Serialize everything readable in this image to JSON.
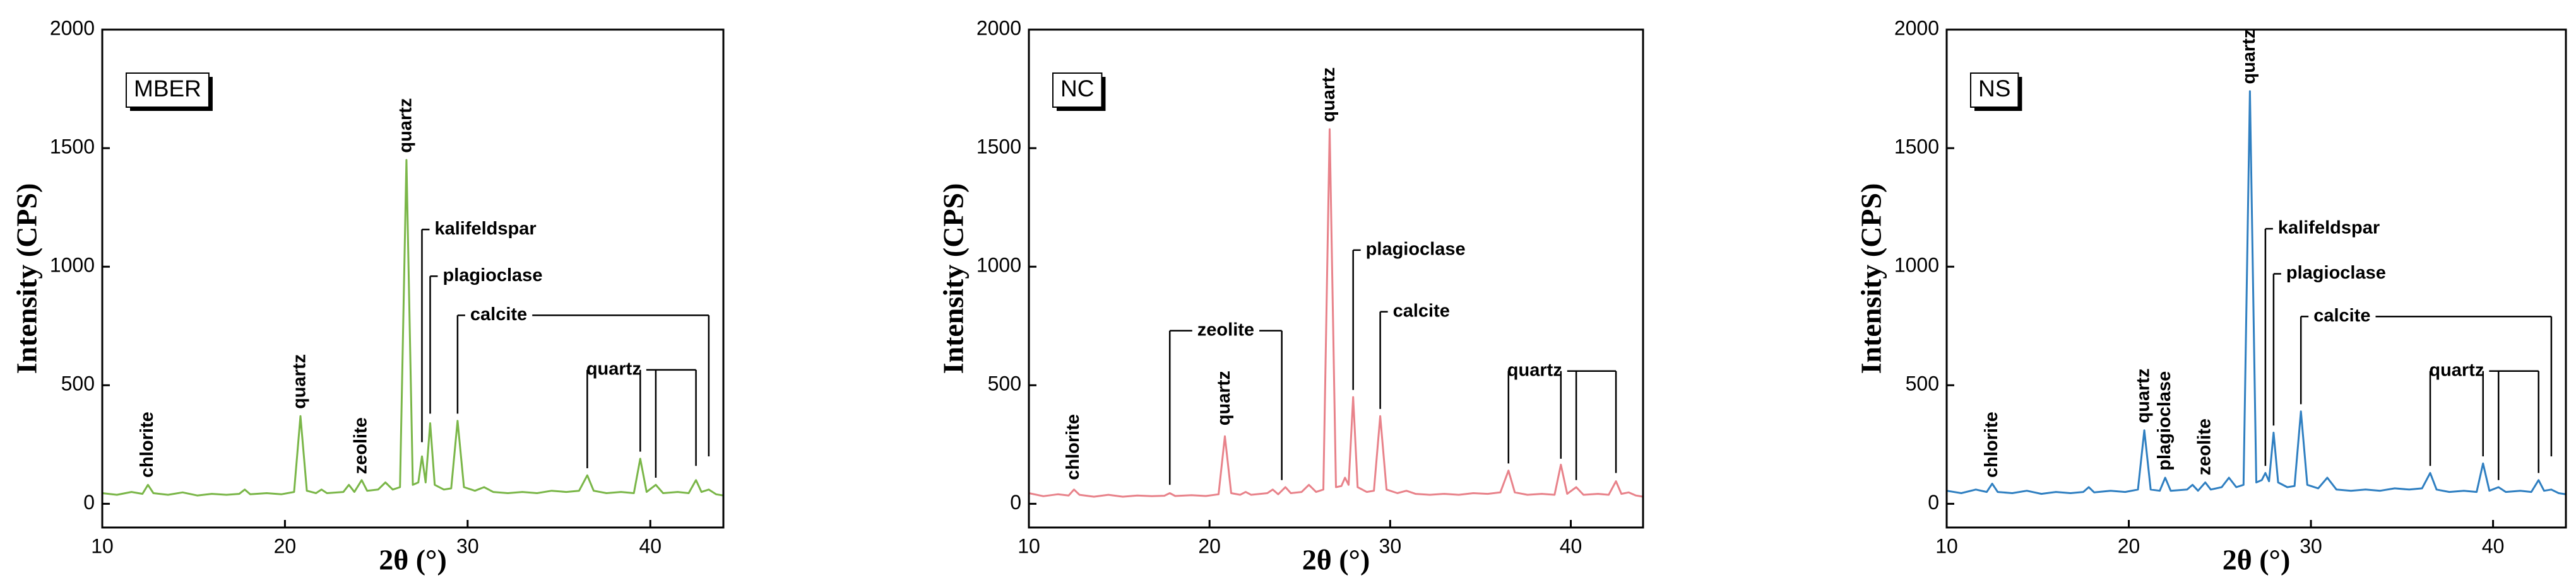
{
  "chart_data": [
    {
      "type": "line",
      "title": "MBER",
      "xlabel": "2θ (°)",
      "ylabel": "Intensity (CPS)",
      "xlim": [
        10,
        44
      ],
      "ylim": [
        -100,
        2000
      ],
      "xticks": [
        10,
        20,
        30,
        40
      ],
      "yticks": [
        0,
        500,
        1000,
        1500,
        2000
      ],
      "x": [
        10,
        10.8,
        11.6,
        12.2,
        12.5,
        12.8,
        13.6,
        14.4,
        15.2,
        16,
        16.8,
        17.5,
        17.8,
        18.1,
        19,
        19.8,
        20.5,
        20.85,
        21.2,
        21.7,
        22,
        22.3,
        23.2,
        23.5,
        23.8,
        24.2,
        24.5,
        25.1,
        25.5,
        25.9,
        26.3,
        26.65,
        27,
        27.3,
        27.5,
        27.7,
        27.95,
        28.2,
        28.7,
        29.1,
        29.45,
        29.8,
        30.4,
        30.9,
        31.4,
        32.2,
        33,
        33.8,
        34.6,
        35.4,
        36.1,
        36.55,
        36.9,
        37.6,
        38.4,
        39.1,
        39.45,
        39.8,
        40.3,
        40.7,
        41.5,
        42.1,
        42.5,
        42.8,
        43.2,
        43.6,
        44
      ],
      "series": [
        {
          "color": "#7ab648",
          "values": [
            45,
            38,
            50,
            42,
            80,
            45,
            38,
            48,
            35,
            42,
            38,
            42,
            60,
            40,
            45,
            40,
            50,
            370,
            55,
            45,
            60,
            45,
            50,
            80,
            50,
            100,
            55,
            60,
            90,
            60,
            70,
            1450,
            80,
            90,
            200,
            90,
            340,
            80,
            60,
            65,
            350,
            70,
            55,
            70,
            50,
            45,
            50,
            45,
            55,
            50,
            55,
            120,
            55,
            45,
            50,
            45,
            190,
            50,
            80,
            45,
            50,
            45,
            100,
            50,
            60,
            40,
            35
          ]
        }
      ],
      "annotations": [
        {
          "text": "chlorite",
          "x": [
            12.5
          ]
        },
        {
          "text": "quartz",
          "x": [
            20.85
          ]
        },
        {
          "text": "zeolite",
          "x": [
            24.2
          ]
        },
        {
          "text": "quartz",
          "x": [
            26.65
          ]
        },
        {
          "text": "kalifeldspar",
          "x": [
            27.5
          ]
        },
        {
          "text": "plagioclase",
          "x": [
            27.95
          ]
        },
        {
          "text": "calcite",
          "x": [
            29.45,
            43.2
          ]
        },
        {
          "text": "quartz",
          "x": [
            36.55,
            39.45,
            40.3,
            42.5
          ]
        }
      ]
    },
    {
      "type": "line",
      "title": "NC",
      "xlabel": "2θ (°)",
      "ylabel": "Intensity (CPS)",
      "xlim": [
        10,
        44
      ],
      "ylim": [
        -100,
        2000
      ],
      "xticks": [
        10,
        20,
        30,
        40
      ],
      "yticks": [
        0,
        500,
        1000,
        1500,
        2000
      ],
      "x": [
        10,
        10.8,
        11.6,
        12.2,
        12.5,
        12.8,
        13.6,
        14.4,
        15.2,
        16,
        16.8,
        17.5,
        17.8,
        18.1,
        19,
        19.8,
        20.5,
        20.85,
        21.2,
        21.7,
        22,
        22.3,
        23.2,
        23.5,
        23.8,
        24.2,
        24.5,
        25.1,
        25.5,
        25.9,
        26.3,
        26.65,
        27,
        27.3,
        27.5,
        27.7,
        27.95,
        28.2,
        28.7,
        29.1,
        29.45,
        29.8,
        30.4,
        30.9,
        31.4,
        32.2,
        33,
        33.8,
        34.6,
        35.4,
        36.1,
        36.55,
        36.9,
        37.6,
        38.4,
        39.1,
        39.45,
        39.8,
        40.3,
        40.7,
        41.5,
        42.1,
        42.5,
        42.8,
        43.2,
        43.6,
        44
      ],
      "series": [
        {
          "color": "#e8828a",
          "values": [
            45,
            32,
            40,
            35,
            60,
            38,
            30,
            38,
            30,
            35,
            32,
            34,
            45,
            33,
            36,
            33,
            40,
            285,
            45,
            38,
            50,
            38,
            45,
            60,
            40,
            70,
            45,
            50,
            80,
            50,
            60,
            1580,
            70,
            75,
            110,
            80,
            450,
            70,
            50,
            55,
            370,
            60,
            45,
            55,
            42,
            38,
            42,
            38,
            45,
            42,
            48,
            140,
            48,
            38,
            42,
            38,
            165,
            42,
            70,
            38,
            42,
            38,
            95,
            42,
            48,
            35,
            30
          ]
        }
      ],
      "annotations": [
        {
          "text": "chlorite",
          "x": [
            12.5
          ]
        },
        {
          "text": "zeolite",
          "x": [
            17.8,
            24
          ]
        },
        {
          "text": "quartz",
          "x": [
            20.85
          ]
        },
        {
          "text": "quartz",
          "x": [
            26.65
          ]
        },
        {
          "text": "plagioclase",
          "x": [
            27.95
          ]
        },
        {
          "text": "calcite",
          "x": [
            29.45
          ]
        },
        {
          "text": "quartz",
          "x": [
            36.55,
            39.45,
            40.3,
            42.5
          ]
        }
      ]
    },
    {
      "type": "line",
      "title": "NS",
      "xlabel": "2θ (°)",
      "ylabel": "Intensity (CPS)",
      "xlim": [
        10,
        44
      ],
      "ylim": [
        -100,
        2000
      ],
      "xticks": [
        10,
        20,
        30,
        40
      ],
      "yticks": [
        0,
        500,
        1000,
        1500,
        2000
      ],
      "x": [
        10,
        10.8,
        11.6,
        12.2,
        12.5,
        12.8,
        13.6,
        14.4,
        15.2,
        16,
        16.8,
        17.5,
        17.8,
        18.1,
        19,
        19.8,
        20.5,
        20.85,
        21.2,
        21.7,
        22,
        22.3,
        23.2,
        23.5,
        23.8,
        24.2,
        24.5,
        25.1,
        25.5,
        25.9,
        26.3,
        26.65,
        27,
        27.3,
        27.5,
        27.7,
        27.95,
        28.2,
        28.7,
        29.1,
        29.45,
        29.8,
        30.4,
        30.9,
        31.4,
        32.2,
        33,
        33.8,
        34.6,
        35.4,
        36.1,
        36.55,
        36.9,
        37.6,
        38.4,
        39.1,
        39.45,
        39.8,
        40.3,
        40.7,
        41.5,
        42.1,
        42.5,
        42.8,
        43.2,
        43.6,
        44
      ],
      "series": [
        {
          "color": "#2f7fc1",
          "values": [
            55,
            45,
            60,
            50,
            85,
            50,
            45,
            55,
            42,
            50,
            45,
            50,
            70,
            48,
            55,
            50,
            60,
            310,
            60,
            55,
            110,
            55,
            60,
            80,
            55,
            90,
            60,
            70,
            110,
            70,
            80,
            1740,
            90,
            100,
            130,
            95,
            300,
            90,
            70,
            75,
            390,
            80,
            65,
            110,
            60,
            55,
            60,
            55,
            65,
            60,
            65,
            130,
            60,
            50,
            55,
            50,
            170,
            55,
            70,
            50,
            55,
            50,
            100,
            55,
            60,
            45,
            40
          ]
        }
      ],
      "annotations": [
        {
          "text": "chlorite",
          "x": [
            12.5
          ]
        },
        {
          "text": "quartz",
          "x": [
            20.85
          ]
        },
        {
          "text": "plagioclase",
          "x": [
            22
          ]
        },
        {
          "text": "zeolite",
          "x": [
            24.2
          ]
        },
        {
          "text": "quartz",
          "x": [
            26.65
          ]
        },
        {
          "text": "kalifeldspar",
          "x": [
            27.5
          ]
        },
        {
          "text": "plagioclase",
          "x": [
            27.95
          ]
        },
        {
          "text": "calcite",
          "x": [
            29.45,
            43.2
          ]
        },
        {
          "text": "quartz",
          "x": [
            36.55,
            39.45,
            40.3,
            42.5
          ]
        }
      ]
    }
  ]
}
